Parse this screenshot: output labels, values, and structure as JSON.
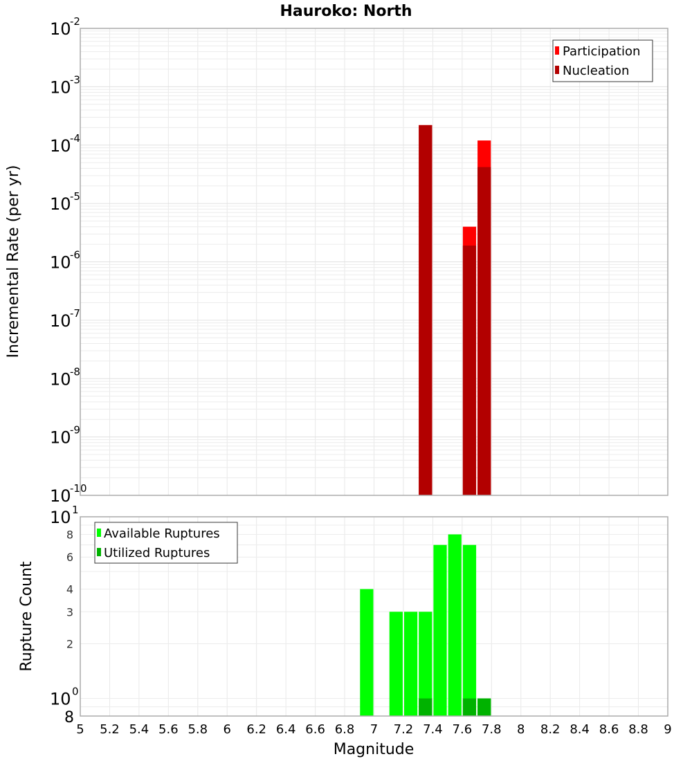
{
  "chart_data": [
    {
      "type": "bar",
      "title": "Hauroko: North",
      "xlabel": "Magnitude",
      "ylabel": "Incremental Rate (per yr)",
      "yscale": "log",
      "xlim": [
        5,
        9
      ],
      "ylim": [
        1e-10,
        0.01
      ],
      "grid": true,
      "legend_position": "top-right",
      "y_tick_exponents": [
        -2,
        -3,
        -4,
        -5,
        -6,
        -7,
        -8,
        -9,
        -10
      ],
      "colors": {
        "Participation": "#ff0000",
        "Nucleation": "#b20000"
      },
      "bar_width": 0.1,
      "x": [
        7.35,
        7.65,
        7.75
      ],
      "series": [
        {
          "name": "Participation",
          "values": [
            0.00022,
            4e-06,
            0.00012
          ]
        },
        {
          "name": "Nucleation",
          "values": [
            0.00022,
            1.9e-06,
            4.2e-05
          ]
        }
      ]
    },
    {
      "type": "bar",
      "title": "",
      "xlabel": "Magnitude",
      "ylabel": "Rupture Count",
      "yscale": "log",
      "xlim": [
        5,
        9
      ],
      "ylim": [
        0.8,
        10
      ],
      "grid": true,
      "legend_position": "top-left",
      "y_major_ticks": [
        {
          "base": "10",
          "exp": "1",
          "value": 10
        },
        {
          "base": "10",
          "exp": "0",
          "value": 1
        }
      ],
      "y_minor_ticks": [
        8,
        6,
        4,
        3,
        2
      ],
      "y_bottom_label": "8",
      "colors": {
        "Available Ruptures": "#00ff00",
        "Utilized Ruptures": "#00b200"
      },
      "bar_width": 0.1,
      "x": [
        6.95,
        7.15,
        7.25,
        7.35,
        7.45,
        7.55,
        7.65,
        7.75
      ],
      "series": [
        {
          "name": "Available Ruptures",
          "values": [
            4,
            3,
            3,
            3,
            7,
            8,
            7,
            1
          ]
        },
        {
          "name": "Utilized Ruptures",
          "values": [
            0,
            0,
            0,
            1,
            0,
            0,
            1,
            1
          ]
        }
      ]
    }
  ],
  "x_tick_labels": [
    "5",
    "5.2",
    "5.4",
    "5.6",
    "5.8",
    "6",
    "6.2",
    "6.4",
    "6.6",
    "6.8",
    "7",
    "7.2",
    "7.4",
    "7.6",
    "7.8",
    "8",
    "8.2",
    "8.4",
    "8.6",
    "8.8",
    "9"
  ],
  "labels": {
    "title": "Hauroko: North",
    "top_ylabel": "Incremental Rate (per yr)",
    "bottom_ylabel": "Rupture Count",
    "xlabel": "Magnitude",
    "legend_top": [
      "Participation",
      "Nucleation"
    ],
    "legend_bottom": [
      "Available Ruptures",
      "Utilized Ruptures"
    ]
  }
}
